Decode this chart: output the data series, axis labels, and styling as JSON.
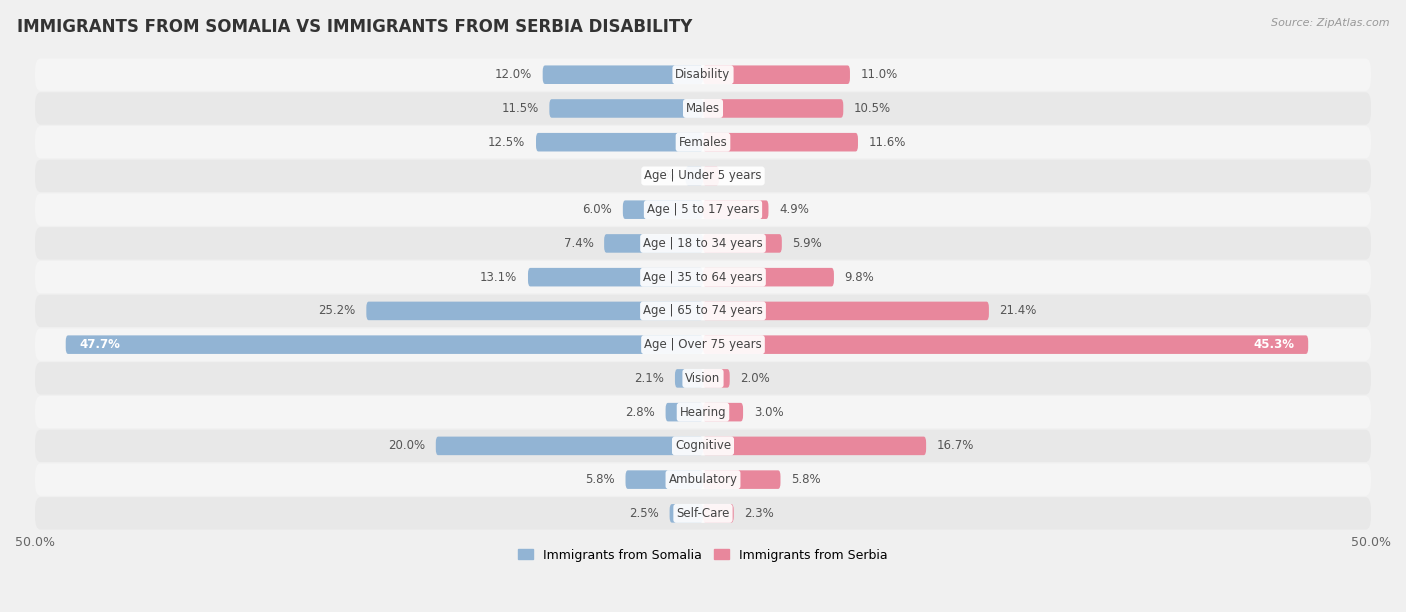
{
  "title": "IMMIGRANTS FROM SOMALIA VS IMMIGRANTS FROM SERBIA DISABILITY",
  "source": "Source: ZipAtlas.com",
  "categories": [
    "Disability",
    "Males",
    "Females",
    "Age | Under 5 years",
    "Age | 5 to 17 years",
    "Age | 18 to 34 years",
    "Age | 35 to 64 years",
    "Age | 65 to 74 years",
    "Age | Over 75 years",
    "Vision",
    "Hearing",
    "Cognitive",
    "Ambulatory",
    "Self-Care"
  ],
  "somalia_values": [
    12.0,
    11.5,
    12.5,
    1.3,
    6.0,
    7.4,
    13.1,
    25.2,
    47.7,
    2.1,
    2.8,
    20.0,
    5.8,
    2.5
  ],
  "serbia_values": [
    11.0,
    10.5,
    11.6,
    1.2,
    4.9,
    5.9,
    9.8,
    21.4,
    45.3,
    2.0,
    3.0,
    16.7,
    5.8,
    2.3
  ],
  "somalia_color": "#92b4d4",
  "serbia_color": "#e8879c",
  "max_val": 50.0,
  "background_color": "#f0f0f0",
  "row_bg_odd": "#f5f5f5",
  "row_bg_even": "#e8e8e8",
  "title_fontsize": 12,
  "label_fontsize": 8.5,
  "legend_somalia": "Immigrants from Somalia",
  "legend_serbia": "Immigrants from Serbia"
}
